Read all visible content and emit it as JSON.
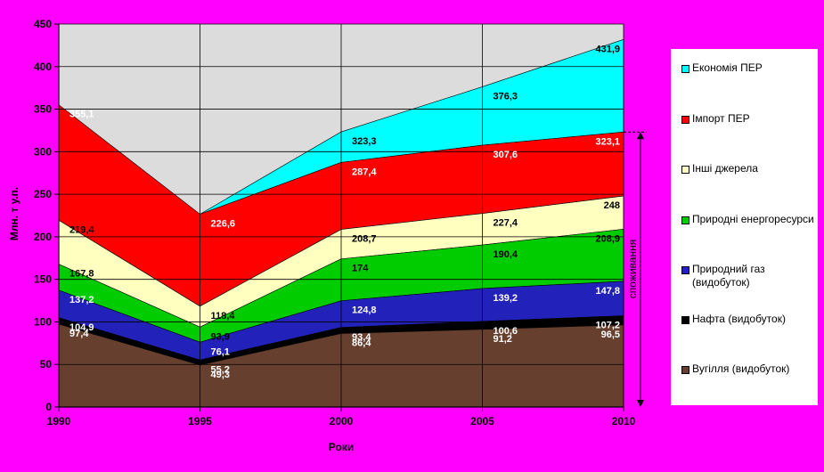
{
  "chart_data": {
    "type": "area",
    "stacked": true,
    "xlabel": "Роки",
    "ylabel": "Млн. т у.п.",
    "x": [
      1990,
      1995,
      2000,
      2005,
      2010
    ],
    "x_tick_labels": [
      "1990",
      "1995",
      "2000",
      "2005",
      "2010"
    ],
    "ylim": [
      0,
      450
    ],
    "y_ticks": [
      0,
      50,
      100,
      150,
      200,
      250,
      300,
      350,
      400,
      450
    ],
    "grid": true,
    "legend_position": "right",
    "bracket_label": "споживання",
    "series": [
      {
        "name": "Вугілля (видобуток)",
        "color": "#663f2f",
        "totals": [
          97.4,
          49.3,
          86.4,
          91.2,
          96.5
        ],
        "labels": [
          "97,4",
          "49,3",
          "86,4",
          "91,2",
          "96,5"
        ],
        "label_color": "#ffffff"
      },
      {
        "name": "Нафта (видобуток)",
        "color": "#000000",
        "totals": [
          104.9,
          55.2,
          93.4,
          100.6,
          107.2
        ],
        "labels": [
          "104,9",
          "55,2",
          "93,4",
          "100,6",
          "107,2"
        ],
        "label_color": "#ffffff"
      },
      {
        "name": "Природний газ (видобуток)",
        "color": "#2222bb",
        "totals": [
          137.2,
          76.1,
          124.8,
          139.2,
          147.8
        ],
        "labels": [
          "137,2",
          "76,1",
          "124,8",
          "139,2",
          "147,8"
        ],
        "label_color": "#ffffff"
      },
      {
        "name": "Природні енергоресурси",
        "color": "#00cc00",
        "totals": [
          167.8,
          93.9,
          174,
          190.4,
          208.9
        ],
        "labels": [
          "167,8",
          "93,9",
          "174",
          "190,4",
          "208,9"
        ],
        "label_color": "#000000"
      },
      {
        "name": "Інші джерела",
        "color": "#ffffc0",
        "totals": [
          219.4,
          118.4,
          208.7,
          227.4,
          248
        ],
        "labels": [
          "219,4",
          "118,4",
          "208,7",
          "227,4",
          "248"
        ],
        "label_color": "#000000"
      },
      {
        "name": "Імпорт ПЕР",
        "color": "#ff0000",
        "totals": [
          355.1,
          226.6,
          287.4,
          307.6,
          323.1
        ],
        "labels": [
          "355,1",
          "226,6",
          "287,4",
          "307,6",
          "323,1"
        ],
        "label_color": "#ffffff"
      },
      {
        "name": "Економія ПЕР",
        "color": "#00ffff",
        "totals": [
          null,
          226.6,
          323.3,
          376.3,
          431.9
        ],
        "labels": [
          "",
          "",
          "323,3",
          "376,3",
          "431,9"
        ],
        "label_color": "#000000"
      }
    ],
    "legend_order": [
      6,
      5,
      4,
      3,
      2,
      1,
      0
    ]
  }
}
